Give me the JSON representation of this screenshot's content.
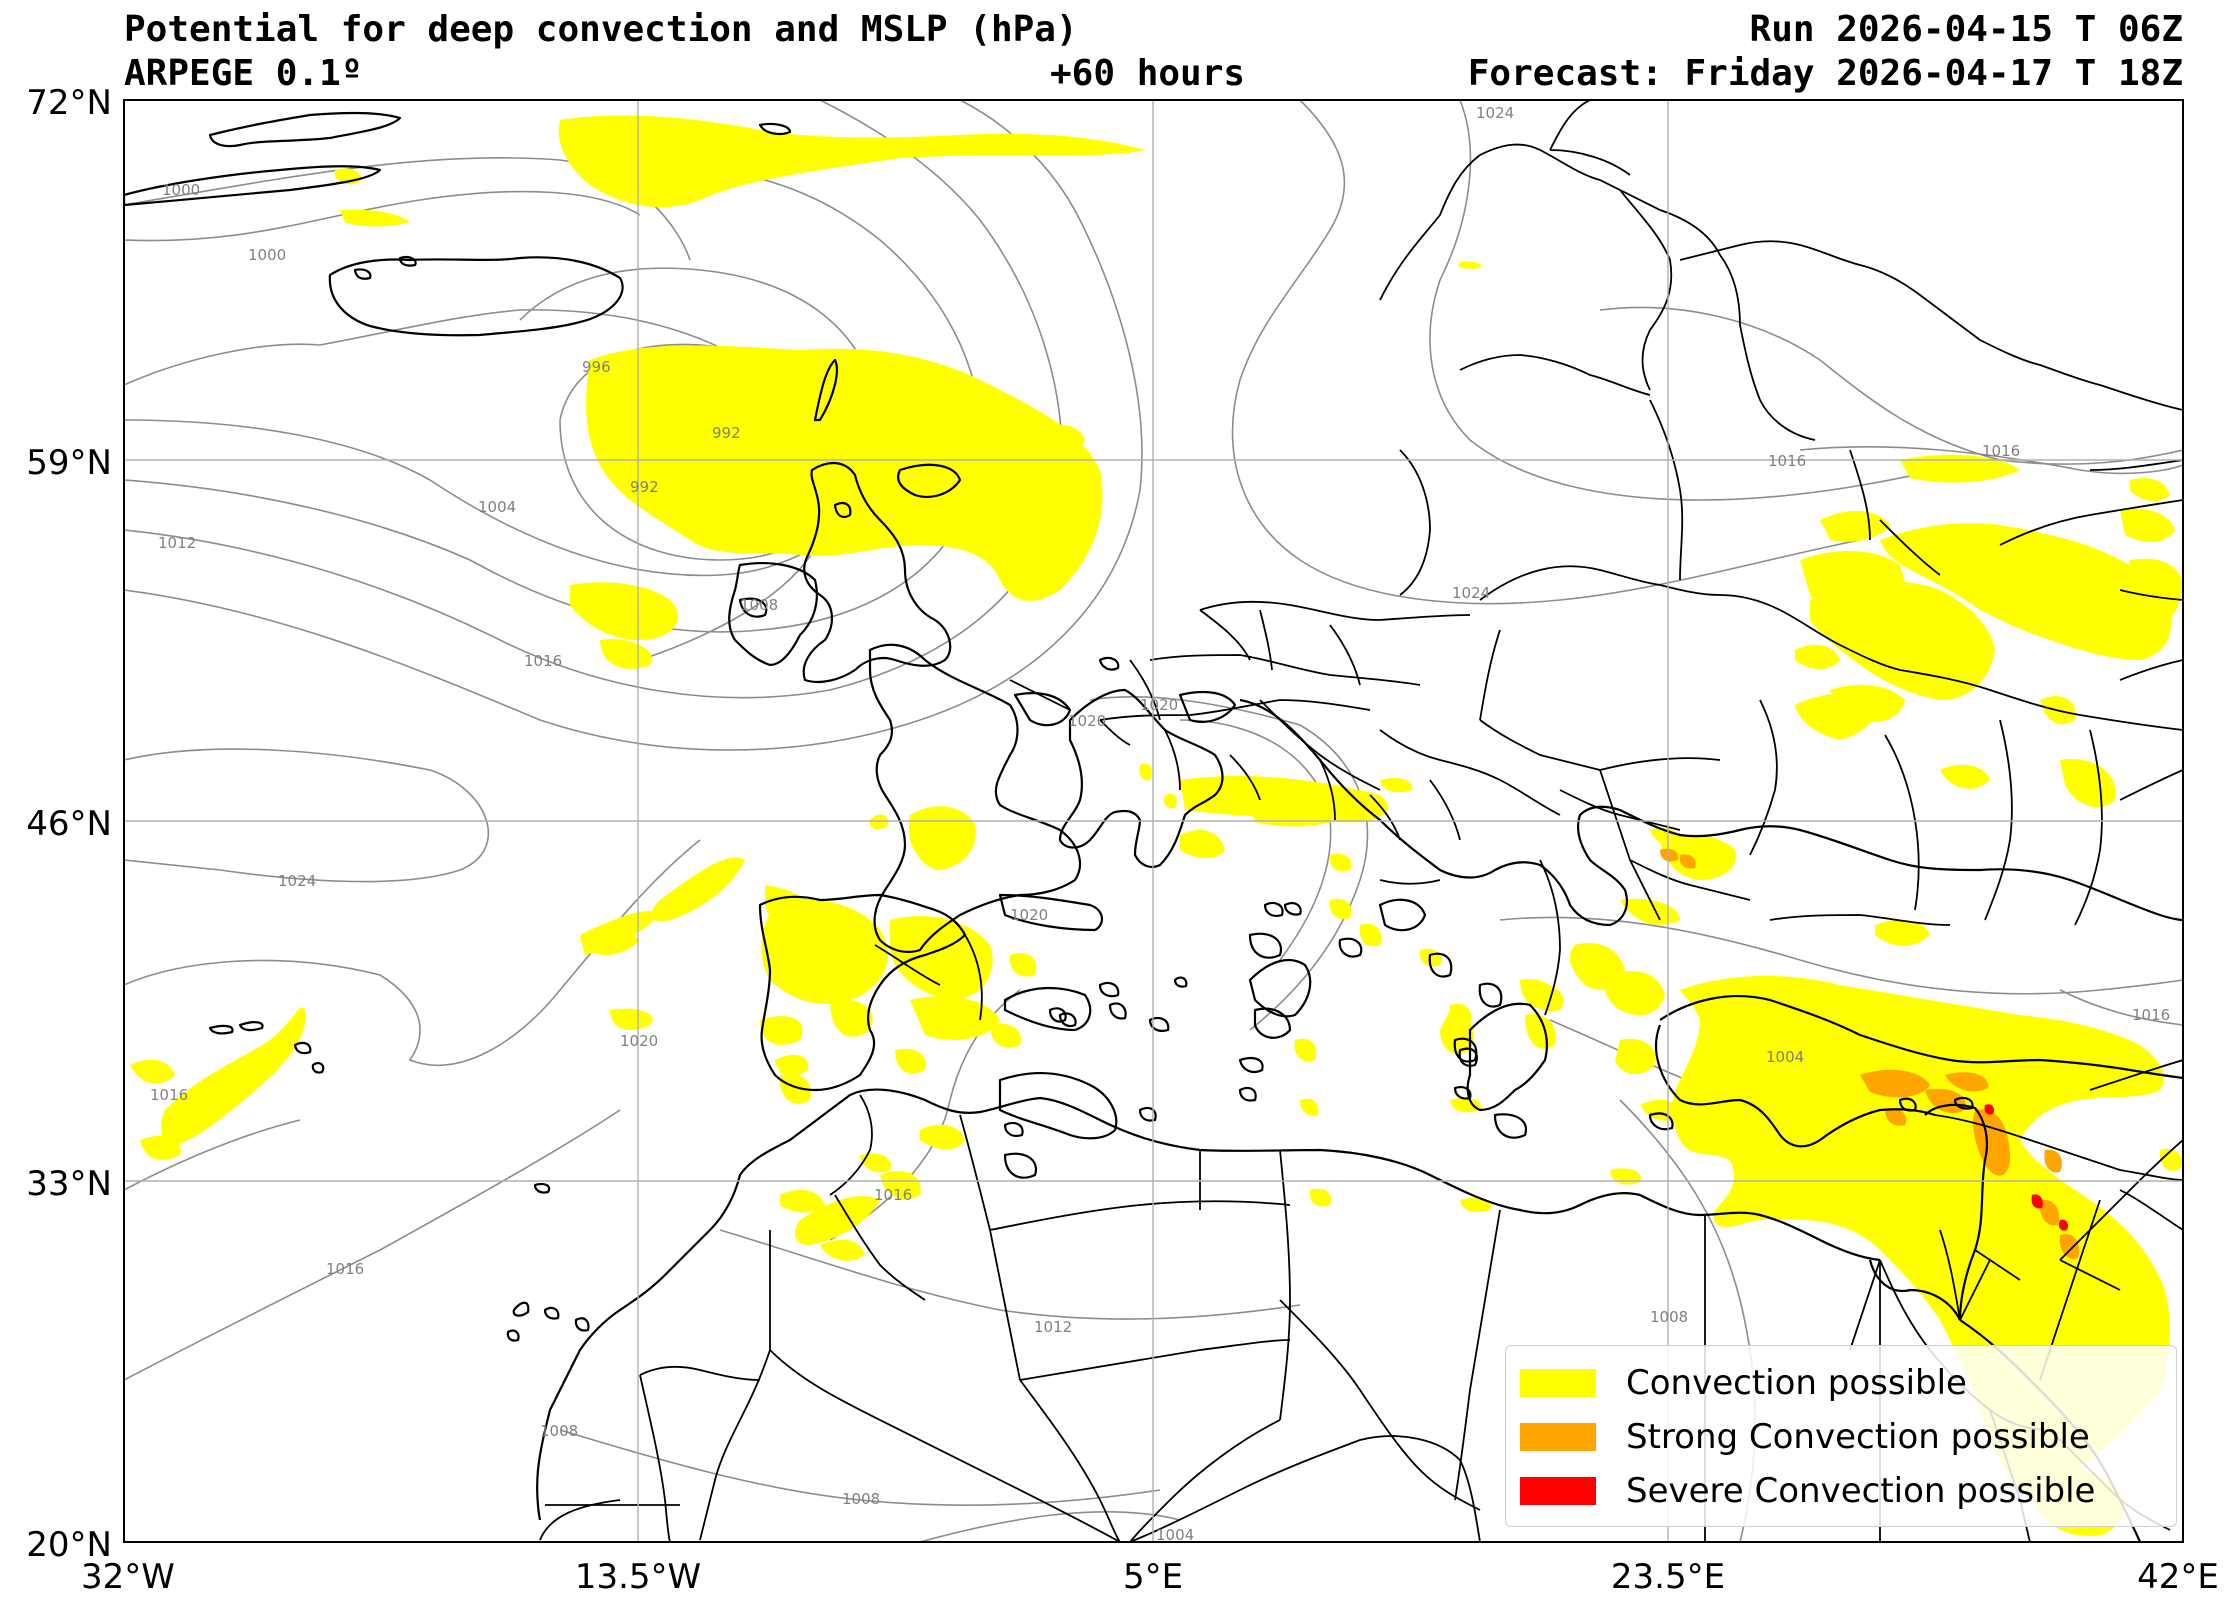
{
  "header": {
    "title": "Potential for deep convection and MSLP (hPa)",
    "model": "ARPEGE 0.1º",
    "run": "Run 2026-04-15 T 06Z",
    "lead": "+60 hours",
    "forecast": "Forecast: Friday 2026-04-17 T 18Z"
  },
  "axes": {
    "lon_ticks": [
      "32°W",
      "13.5°W",
      "5°E",
      "23.5°E",
      "42°E"
    ],
    "lat_ticks": [
      "72°N",
      "59°N",
      "46°N",
      "33°N",
      "20°N"
    ],
    "lon_range": [
      -32,
      42
    ],
    "lat_range": [
      20,
      72
    ],
    "grid": true
  },
  "legend": {
    "items": [
      {
        "label": "Convection possible",
        "color": "#ffff00"
      },
      {
        "label": "Strong Convection possible",
        "color": "#ffa500"
      },
      {
        "label": "Severe Convection possible",
        "color": "#ff0000"
      }
    ]
  },
  "isobar_labels": [
    "1024",
    "1000",
    "1000",
    "996",
    "992",
    "992",
    "1004",
    "1012",
    "1008",
    "1016",
    "1020",
    "1020",
    "1024",
    "1020",
    "1020",
    "1016",
    "1016",
    "1016",
    "1016",
    "1012",
    "1008",
    "1008",
    "1008",
    "1004",
    "1024",
    "1016",
    "1016",
    "1004"
  ],
  "colors": {
    "coast": "#000000",
    "isobar": "#8c8c8c",
    "grid": "#b0b0b0",
    "convection": "#ffff00",
    "strong": "#ffa500",
    "severe": "#ff0000"
  }
}
